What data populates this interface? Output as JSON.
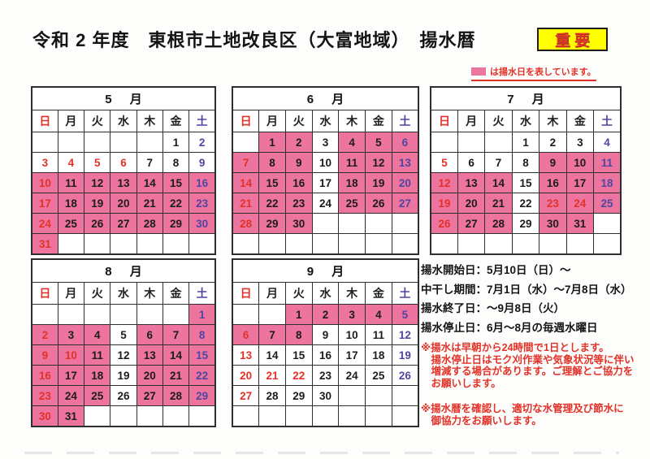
{
  "page": {
    "title": "令和 2 年度　東根市土地改良区（大富地域）　揚水暦",
    "important_badge": "重要",
    "legend_text": "は揚水日を表しています。"
  },
  "colors": {
    "highlight_pink": "#ee74a0",
    "sunday_holiday_red": "#e23228",
    "saturday_blue": "#4f46a0",
    "badge_yellow": "#ffff00",
    "text_black": "#1c1c1c"
  },
  "weekday_headers": [
    "日",
    "月",
    "火",
    "水",
    "木",
    "金",
    "土"
  ],
  "months": [
    {
      "id": "may",
      "name": "5 月",
      "weeks": [
        [
          "",
          "",
          "",
          "",
          "",
          "1",
          "2 sat"
        ],
        [
          "3 sun",
          "4 hol",
          "5 hol",
          "6 hol",
          "7",
          "8",
          "9 sat"
        ],
        [
          "10 sun hl",
          "11 hl",
          "12 hl",
          "13 hl",
          "14 hl",
          "15 hl",
          "16 sat hl"
        ],
        [
          "17 sun hl",
          "18 hl",
          "19 hl",
          "20 hl",
          "21 hl",
          "22 hl",
          "23 sat hl"
        ],
        [
          "24 sun hl",
          "25 hl",
          "26 hl",
          "27 hl",
          "28 hl",
          "29 hl",
          "30 sat hl"
        ],
        [
          "31 sun hl",
          "",
          "",
          "",
          "",
          "",
          ""
        ]
      ]
    },
    {
      "id": "june",
      "name": "6 月",
      "weeks": [
        [
          "",
          "1 hl",
          "2 hl",
          "3",
          "4 hl",
          "5 hl",
          "6 sat hl"
        ],
        [
          "7 sun hl",
          "8 hl",
          "9 hl",
          "10",
          "11 hl",
          "12 hl",
          "13 sat hl"
        ],
        [
          "14 sun hl",
          "15 hl",
          "16 hl",
          "17",
          "18 hl",
          "19 hl",
          "20 sat hl"
        ],
        [
          "21 sun hl",
          "22 hl",
          "23 hl",
          "24",
          "25 hl",
          "26 hl",
          "27 sat hl"
        ],
        [
          "28 sun hl",
          "29 hl",
          "30 hl",
          "",
          "",
          "",
          ""
        ],
        [
          "",
          "",
          "",
          "",
          "",
          "",
          ""
        ]
      ]
    },
    {
      "id": "july",
      "name": "7 月",
      "weeks": [
        [
          "",
          "",
          "",
          "1",
          "2",
          "3",
          "4 sat"
        ],
        [
          "5 sun",
          "6",
          "7",
          "8",
          "9 hl",
          "10 hl",
          "11 sat hl"
        ],
        [
          "12 sun hl",
          "13 hl",
          "14 hl",
          "15",
          "16 hl",
          "17 hl",
          "18 sat hl"
        ],
        [
          "19 sun hl",
          "20 hl",
          "21 hl",
          "22",
          "23 hol hl",
          "24 hol hl",
          "25 sat hl"
        ],
        [
          "26 sun hl",
          "27 hl",
          "28 hl",
          "29",
          "30 hl",
          "31 hl",
          ""
        ],
        [
          "",
          "",
          "",
          "",
          "",
          "",
          ""
        ]
      ]
    },
    {
      "id": "august",
      "name": "8 月",
      "weeks": [
        [
          "",
          "",
          "",
          "",
          "",
          "",
          "1 sat hl"
        ],
        [
          "2 sun hl",
          "3 hl",
          "4 hl",
          "5",
          "6 hl",
          "7 hl",
          "8 sat hl"
        ],
        [
          "9 sun hl",
          "10 hol hl",
          "11 hl",
          "12",
          "13 hl",
          "14 hl",
          "15 sat hl"
        ],
        [
          "16 sun hl",
          "17 hl",
          "18 hl",
          "19",
          "20 hl",
          "21 hl",
          "22 sat hl"
        ],
        [
          "23 sun hl",
          "24 hl",
          "25 hl",
          "26",
          "27 hl",
          "28 hl",
          "29 sat hl"
        ],
        [
          "30 sun hl",
          "31 hl",
          "",
          "",
          "",
          "",
          ""
        ]
      ]
    },
    {
      "id": "september",
      "name": "9 月",
      "weeks": [
        [
          "",
          "",
          "1 hl",
          "2 hl",
          "3 hl",
          "4 hl",
          "5 sat hl"
        ],
        [
          "6 sun hl",
          "7 hl",
          "8 hl",
          "9",
          "10",
          "11",
          "12 sat"
        ],
        [
          "13 sun",
          "14",
          "15",
          "16",
          "17",
          "18",
          "19 sat"
        ],
        [
          "20 sun",
          "21 hol",
          "22 hol",
          "23",
          "24",
          "25",
          "26 sat"
        ],
        [
          "27 sun",
          "28",
          "29",
          "30",
          "",
          "",
          ""
        ],
        [
          "",
          "",
          "",
          "",
          "",
          "",
          ""
        ]
      ]
    }
  ],
  "info": {
    "lines": [
      "揚水開始日：5月10日（日）～",
      "中干し期間：7月1日（水）～7月8日（水）",
      "揚水終了日：～9月8日（火）",
      "揚水停止日：6月～8月の毎週水曜日"
    ],
    "notes": [
      [
        "※揚水は早朝から24時間で1日とします。",
        "　揚水停止日はモク刈作業や気象状況等に伴い",
        "　増減する場合があります。ご理解とご協力を",
        "　お願いします。"
      ],
      [
        "※揚水暦を確認し、適切な水管理及び節水に",
        "　御協力をお願いします。"
      ]
    ]
  }
}
